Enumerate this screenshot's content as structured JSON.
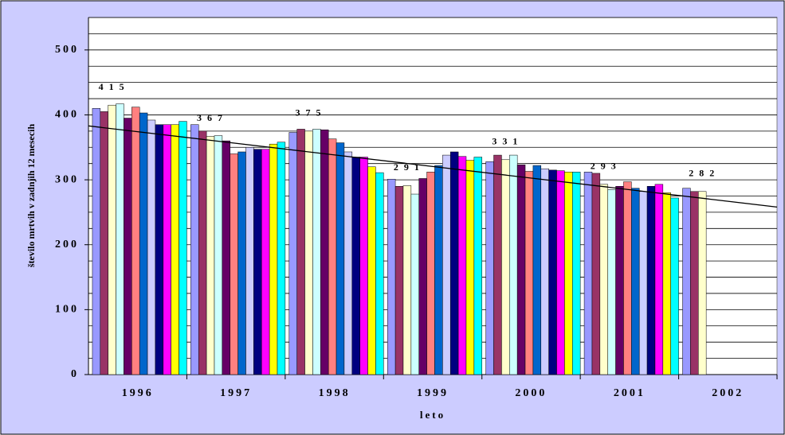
{
  "chart_data": {
    "type": "bar",
    "y_label": "število mrtvih v zadnjih 12 mesecih",
    "x_label": "leto",
    "categories": [
      "1996",
      "1997",
      "1998",
      "1999",
      "2000",
      "2001",
      "2002"
    ],
    "ylim": [
      0,
      550
    ],
    "yticks": [
      0,
      100,
      200,
      300,
      400,
      500
    ],
    "grid_lines": [
      25,
      50,
      75,
      100,
      125,
      150,
      175,
      200,
      225,
      250,
      275,
      300,
      325,
      350,
      375,
      400,
      425,
      450,
      475,
      500,
      525,
      550
    ],
    "series": [
      {
        "color": "#9999ff",
        "values": [
          410,
          385,
          373,
          301,
          328,
          312,
          287
        ]
      },
      {
        "color": "#993366",
        "values": [
          405,
          375,
          378,
          290,
          338,
          310,
          282
        ]
      },
      {
        "color": "#ffffcc",
        "values": [
          415,
          367,
          375,
          291,
          331,
          293,
          282
        ],
        "value_labels": [
          "4 1 5",
          "3 6 7",
          "3 7 5",
          "2 9 1",
          "3 3 1",
          "2 9 3",
          "2 8 2"
        ]
      },
      {
        "color": "#ccffff",
        "values": [
          417,
          368,
          378,
          278,
          338,
          285,
          null
        ]
      },
      {
        "color": "#660066",
        "values": [
          395,
          360,
          377,
          302,
          323,
          290,
          null
        ]
      },
      {
        "color": "#ff8080",
        "values": [
          412,
          340,
          363,
          312,
          313,
          297,
          null
        ]
      },
      {
        "color": "#0066cc",
        "values": [
          403,
          343,
          357,
          322,
          322,
          287,
          null
        ]
      },
      {
        "color": "#ccccff",
        "values": [
          392,
          350,
          343,
          338,
          317,
          282,
          null
        ]
      },
      {
        "color": "#000080",
        "values": [
          385,
          347,
          335,
          343,
          315,
          290,
          null
        ]
      },
      {
        "color": "#ff00ff",
        "values": [
          385,
          347,
          335,
          336,
          314,
          293,
          null
        ]
      },
      {
        "color": "#ffff00",
        "values": [
          385,
          355,
          320,
          330,
          312,
          280,
          null
        ]
      },
      {
        "color": "#00ffff",
        "values": [
          390,
          358,
          311,
          335,
          312,
          272,
          null
        ]
      }
    ],
    "trendline": {
      "color": "#000000",
      "values": [
        383,
        258
      ]
    },
    "grid": true
  }
}
